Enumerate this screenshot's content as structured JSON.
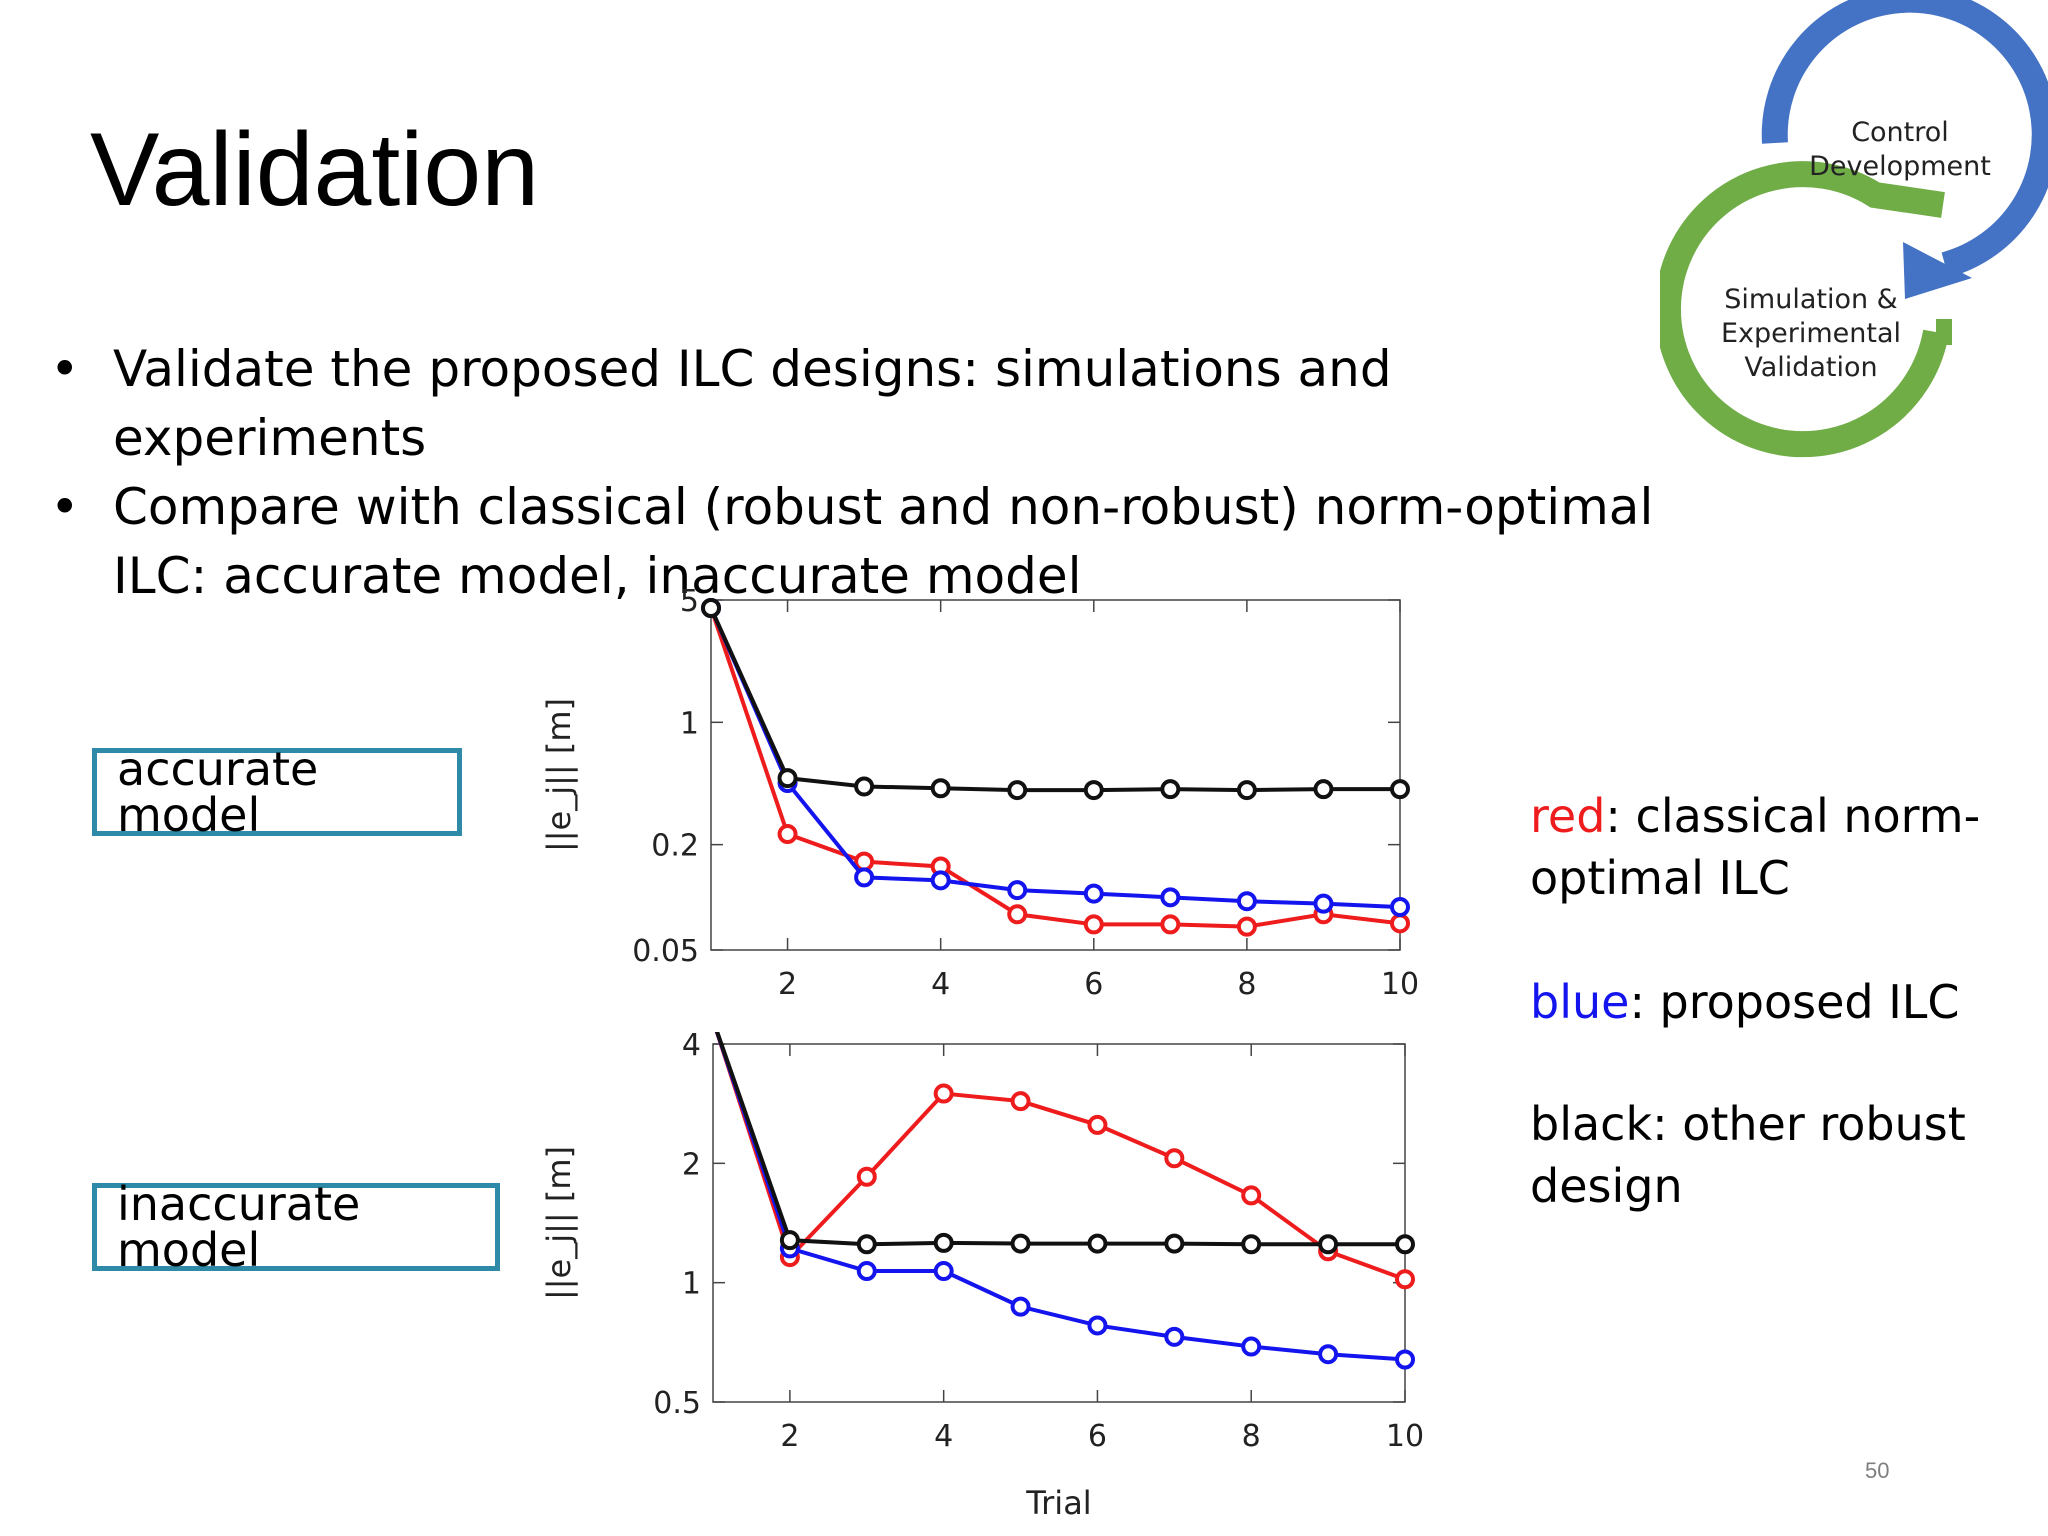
{
  "slide": {
    "title": "Validation",
    "bullets": [
      "Validate the proposed ILC designs: simulations and experiments",
      "Compare with classical (robust and non-robust) norm-optimal ILC: accurate model, inaccurate model"
    ],
    "labels": {
      "accurate": "accurate model",
      "inaccurate": "inaccurate model"
    },
    "cycle": {
      "top": [
        "Control",
        "Development"
      ],
      "bottom": [
        "Simulation &",
        "Experimental",
        "Validation"
      ]
    },
    "legend": {
      "red_key": "red",
      "red_text": ": classical norm-optimal ILC",
      "blue_key": "blue",
      "blue_text": ": proposed ILC",
      "black_text": "black: other robust design"
    },
    "page_number": "50",
    "colors": {
      "red": "#ee1c1c",
      "blue": "#1414ee",
      "black": "#111111",
      "box_border": "#2f8aa8",
      "cycle_blue": "#4472c4",
      "cycle_green": "#70ad47"
    }
  },
  "chart_data": [
    {
      "type": "line",
      "ylabel": "||e_j|| [m]",
      "yscale": "log",
      "ylim": [
        0.05,
        5
      ],
      "xlim": [
        1,
        10
      ],
      "yticks": [
        {
          "value": 5,
          "label": "5"
        },
        {
          "value": 1,
          "label": "1"
        },
        {
          "value": 0.2,
          "label": "0.2"
        },
        {
          "value": 0.05,
          "label": "0.05"
        }
      ],
      "xticks": [
        2,
        4,
        6,
        8,
        10
      ],
      "x": [
        1,
        2,
        3,
        4,
        5,
        6,
        7,
        8,
        9,
        10
      ],
      "series": [
        {
          "color": "red",
          "values": [
            4.5,
            0.23,
            0.16,
            0.15,
            0.08,
            0.07,
            0.07,
            0.068,
            0.08,
            0.071
          ]
        },
        {
          "color": "blue",
          "values": [
            4.5,
            0.45,
            0.13,
            0.125,
            0.11,
            0.105,
            0.1,
            0.095,
            0.092,
            0.088
          ]
        },
        {
          "color": "black",
          "values": [
            4.5,
            0.48,
            0.43,
            0.42,
            0.41,
            0.41,
            0.415,
            0.41,
            0.415,
            0.415
          ]
        }
      ]
    },
    {
      "type": "line",
      "ylabel": "||e_j|| [m]",
      "xlabel": "Trial",
      "yscale": "log",
      "ylim": [
        0.5,
        4
      ],
      "xlim": [
        1,
        10
      ],
      "yticks": [
        {
          "value": 4,
          "label": "4"
        },
        {
          "value": 2,
          "label": "2"
        },
        {
          "value": 1,
          "label": "1"
        },
        {
          "value": 0.5,
          "label": "0.5"
        }
      ],
      "xticks": [
        2,
        4,
        6,
        8,
        10
      ],
      "x": [
        1,
        2,
        3,
        4,
        5,
        6,
        7,
        8,
        9,
        10
      ],
      "series": [
        {
          "color": "red",
          "values": [
            4.6,
            1.16,
            1.85,
            3.0,
            2.87,
            2.5,
            2.06,
            1.66,
            1.2,
            1.02
          ]
        },
        {
          "color": "blue",
          "values": [
            4.6,
            1.22,
            1.07,
            1.07,
            0.87,
            0.78,
            0.73,
            0.69,
            0.66,
            0.64
          ]
        },
        {
          "color": "black",
          "values": [
            4.6,
            1.28,
            1.25,
            1.26,
            1.255,
            1.255,
            1.255,
            1.25,
            1.25,
            1.25
          ]
        }
      ]
    }
  ]
}
